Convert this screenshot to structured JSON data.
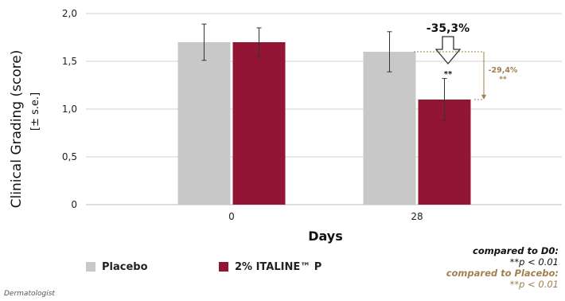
{
  "chart_data": {
    "type": "bar",
    "categories": [
      "0",
      "28"
    ],
    "series": [
      {
        "name": "Placebo",
        "values": [
          1.7,
          1.6
        ],
        "errors": [
          0.19,
          0.21
        ],
        "color": "#c8c8c8"
      },
      {
        "name": "2% ITALINE™ P",
        "values": [
          1.7,
          1.1
        ],
        "errors": [
          0.15,
          0.22
        ],
        "color": "#921634"
      }
    ],
    "xlabel": "Days",
    "ylabel": "Clinical Grading (score)",
    "ylabel_sub": "[± s.e.]",
    "ylim": [
      0,
      2.0
    ],
    "yticks": [
      "0",
      "0,5",
      "1,0",
      "1,5",
      "2,0"
    ],
    "ytick_values": [
      0,
      0.5,
      1.0,
      1.5,
      2.0
    ],
    "grid": true,
    "legend_position": "bottom-left",
    "annotations": {
      "reduction_vs_d0": "-35,3%",
      "bar_significance": "**",
      "reduction_vs_placebo": "-29,4%",
      "reduction_vs_placebo_significance": "**"
    }
  },
  "notes": {
    "compared_d0_label": "compared to D0:",
    "compared_d0_value": "**p < 0.01",
    "compared_placebo_label": "compared to Placebo:",
    "compared_placebo_value": "**p < 0.01"
  },
  "footer": "Dermatologist",
  "colors": {
    "placebo": "#c8c8c8",
    "italine": "#921634",
    "accent_gold": "#a08050",
    "grid": "#d0d0d0"
  }
}
